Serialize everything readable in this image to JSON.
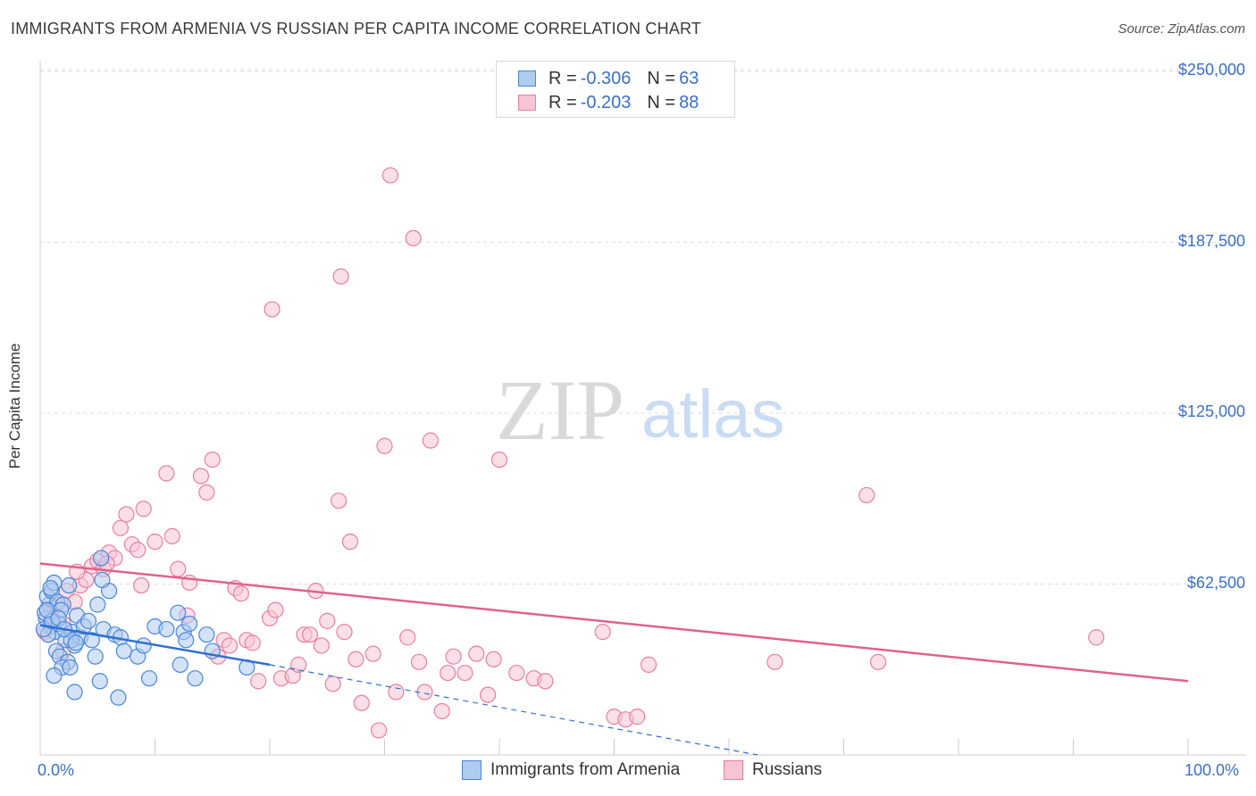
{
  "title": "IMMIGRANTS FROM ARMENIA VS RUSSIAN PER CAPITA INCOME CORRELATION CHART",
  "source": "Source: ZipAtlas.com",
  "watermark": {
    "zip": "ZIP",
    "atlas": "atlas"
  },
  "legend": {
    "armenia": {
      "r_label": "R =",
      "r_value": "-0.306",
      "n_label": "N =",
      "n_value": "63"
    },
    "russians": {
      "r_label": "R =",
      "r_value": "-0.203",
      "n_label": "N =",
      "n_value": "88"
    }
  },
  "bottom_legend": {
    "armenia": "Immigrants from Armenia",
    "russians": "Russians"
  },
  "colors": {
    "armenia_fill": "#aecbf0",
    "armenia_stroke": "#4a86d8",
    "armenia_line": "#2f6fd0",
    "russians_fill": "#f7c4d4",
    "russians_stroke": "#e87fa0",
    "russians_line": "#e0628c",
    "tick_text": "#3b6fc9",
    "grid": "#dddddd"
  },
  "chart_data": {
    "type": "scatter",
    "title": "IMMIGRANTS FROM ARMENIA VS RUSSIAN PER CAPITA INCOME CORRELATION CHART",
    "xlabel": "",
    "ylabel": "Per Capita Income",
    "xlim": [
      0,
      100
    ],
    "ylim": [
      0,
      262500
    ],
    "x_tick_labels": [
      "0.0%",
      "100.0%"
    ],
    "y_ticks": [
      62500,
      125000,
      187500,
      250000
    ],
    "y_tick_labels": [
      "$62,500",
      "$125,000",
      "$187,500",
      "$250,000"
    ],
    "series": [
      {
        "name": "Immigrants from Armenia",
        "r": -0.306,
        "n": 63,
        "trend": {
          "x": [
            0,
            20
          ],
          "y": [
            47500,
            33000
          ]
        },
        "trend_ext": {
          "x": [
            20,
            62.5
          ],
          "y": [
            33000,
            0
          ]
        },
        "points": [
          [
            0.5,
            50000
          ],
          [
            0.8,
            55000
          ],
          [
            0.6,
            58000
          ],
          [
            1.0,
            60000
          ],
          [
            1.2,
            63000
          ],
          [
            0.4,
            52000
          ],
          [
            0.9,
            47000
          ],
          [
            1.3,
            45000
          ],
          [
            0.7,
            44000
          ],
          [
            1.5,
            56000
          ],
          [
            1.1,
            49000
          ],
          [
            0.3,
            46000
          ],
          [
            2.0,
            55000
          ],
          [
            1.8,
            53000
          ],
          [
            2.5,
            62000
          ],
          [
            1.6,
            48000
          ],
          [
            2.2,
            42000
          ],
          [
            1.4,
            38000
          ],
          [
            1.7,
            36000
          ],
          [
            2.8,
            45000
          ],
          [
            3.0,
            40000
          ],
          [
            3.2,
            51000
          ],
          [
            3.5,
            43000
          ],
          [
            3.8,
            47000
          ],
          [
            4.2,
            49000
          ],
          [
            4.5,
            42000
          ],
          [
            5.0,
            55000
          ],
          [
            5.5,
            46000
          ],
          [
            6.0,
            60000
          ],
          [
            6.5,
            44000
          ],
          [
            7.0,
            43000
          ],
          [
            7.3,
            38000
          ],
          [
            8.5,
            36000
          ],
          [
            4.8,
            36000
          ],
          [
            2.4,
            34000
          ],
          [
            1.9,
            32000
          ],
          [
            1.2,
            29000
          ],
          [
            2.6,
            32000
          ],
          [
            5.2,
            27000
          ],
          [
            6.8,
            21000
          ],
          [
            3.0,
            23000
          ],
          [
            9.0,
            40000
          ],
          [
            9.5,
            28000
          ],
          [
            10.0,
            47000
          ],
          [
            12.0,
            52000
          ],
          [
            12.5,
            45000
          ],
          [
            12.7,
            42000
          ],
          [
            13.0,
            48000
          ],
          [
            13.5,
            28000
          ],
          [
            14.5,
            44000
          ],
          [
            15.0,
            38000
          ],
          [
            18.0,
            32000
          ],
          [
            11.0,
            46000
          ],
          [
            12.2,
            33000
          ],
          [
            2.7,
            42000
          ],
          [
            1.0,
            49000
          ],
          [
            0.6,
            53000
          ],
          [
            0.9,
            61000
          ],
          [
            1.6,
            50000
          ],
          [
            2.1,
            46000
          ],
          [
            3.1,
            41000
          ],
          [
            5.3,
            72000
          ],
          [
            5.4,
            64000
          ]
        ]
      },
      {
        "name": "Russians",
        "r": -0.203,
        "n": 88,
        "trend": {
          "x": [
            0,
            100
          ],
          "y": [
            70000,
            27000
          ]
        },
        "points": [
          [
            0.4,
            45000
          ],
          [
            0.7,
            44000
          ],
          [
            1.0,
            52000
          ],
          [
            1.5,
            55000
          ],
          [
            2.0,
            48000
          ],
          [
            2.3,
            60000
          ],
          [
            3.0,
            56000
          ],
          [
            3.5,
            62000
          ],
          [
            4.0,
            64000
          ],
          [
            4.5,
            69000
          ],
          [
            5.0,
            71000
          ],
          [
            5.5,
            68000
          ],
          [
            6.0,
            74000
          ],
          [
            6.5,
            72000
          ],
          [
            7.0,
            83000
          ],
          [
            7.5,
            88000
          ],
          [
            8.0,
            77000
          ],
          [
            8.5,
            75000
          ],
          [
            9.0,
            90000
          ],
          [
            10.0,
            78000
          ],
          [
            11.0,
            103000
          ],
          [
            11.5,
            80000
          ],
          [
            12.0,
            68000
          ],
          [
            13.0,
            63000
          ],
          [
            14.0,
            102000
          ],
          [
            14.5,
            96000
          ],
          [
            15.0,
            108000
          ],
          [
            16.0,
            42000
          ],
          [
            16.5,
            40000
          ],
          [
            17.0,
            61000
          ],
          [
            17.5,
            59000
          ],
          [
            18.0,
            42000
          ],
          [
            19.0,
            27000
          ],
          [
            20.0,
            50000
          ],
          [
            20.5,
            53000
          ],
          [
            21.0,
            28000
          ],
          [
            22.0,
            29000
          ],
          [
            23.0,
            44000
          ],
          [
            23.5,
            44000
          ],
          [
            24.0,
            60000
          ],
          [
            24.5,
            40000
          ],
          [
            25.0,
            49000
          ],
          [
            25.5,
            26000
          ],
          [
            26.0,
            93000
          ],
          [
            26.5,
            45000
          ],
          [
            27.0,
            78000
          ],
          [
            28.0,
            19000
          ],
          [
            29.0,
            37000
          ],
          [
            29.5,
            9000
          ],
          [
            30.0,
            113000
          ],
          [
            31.0,
            23000
          ],
          [
            32.0,
            43000
          ],
          [
            33.0,
            34000
          ],
          [
            33.5,
            23000
          ],
          [
            34.0,
            115000
          ],
          [
            35.0,
            16000
          ],
          [
            36.0,
            36000
          ],
          [
            37.0,
            30000
          ],
          [
            38.0,
            37000
          ],
          [
            39.0,
            22000
          ],
          [
            39.5,
            35000
          ],
          [
            40.0,
            108000
          ],
          [
            41.5,
            30000
          ],
          [
            43.0,
            28000
          ],
          [
            49.0,
            45000
          ],
          [
            50.0,
            14000
          ],
          [
            51.0,
            13000
          ],
          [
            52.0,
            14000
          ],
          [
            53.0,
            33000
          ],
          [
            64.0,
            34000
          ],
          [
            72.0,
            95000
          ],
          [
            73.0,
            34000
          ],
          [
            92.0,
            43000
          ],
          [
            30.5,
            212000
          ],
          [
            32.5,
            189000
          ],
          [
            26.2,
            175000
          ],
          [
            20.2,
            163000
          ],
          [
            2.0,
            38000
          ],
          [
            3.2,
            67000
          ],
          [
            5.8,
            70000
          ],
          [
            8.8,
            62000
          ],
          [
            12.8,
            51000
          ],
          [
            15.5,
            36000
          ],
          [
            18.5,
            41000
          ],
          [
            22.5,
            33000
          ],
          [
            27.5,
            35000
          ],
          [
            35.5,
            30000
          ],
          [
            44.0,
            27000
          ]
        ]
      }
    ]
  }
}
